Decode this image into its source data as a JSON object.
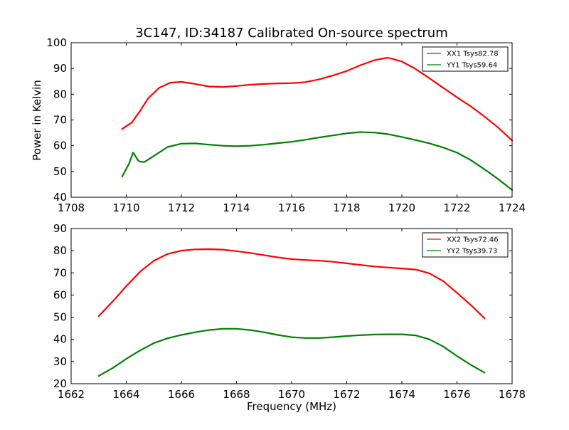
{
  "figure": {
    "title": "3C147, ID:34187 Calibrated On-source spectrum",
    "ylabel": "Power in Kelvin",
    "xlabel": "Frequency (MHz)"
  },
  "chart_data": [
    {
      "type": "line",
      "title": "3C147, ID:34187 Calibrated On-source spectrum",
      "ylabel": "Power in Kelvin",
      "xlabel": "",
      "xlim": [
        1708,
        1724
      ],
      "ylim": [
        40,
        100
      ],
      "xticks": [
        "1708",
        "1710",
        "1712",
        "1714",
        "1716",
        "1718",
        "1720",
        "1722",
        "1724"
      ],
      "yticks": [
        "40",
        "50",
        "60",
        "70",
        "80",
        "90",
        "100"
      ],
      "legend_position": "top-right",
      "series": [
        {
          "name": "XX1 Tsys82.78",
          "color": "#ff0000",
          "x": [
            1709.85,
            1710.2,
            1710.5,
            1710.8,
            1711.2,
            1711.6,
            1712.0,
            1712.5,
            1713.0,
            1713.5,
            1714.0,
            1714.5,
            1715.0,
            1715.5,
            1716.0,
            1716.5,
            1717.0,
            1717.5,
            1718.0,
            1718.5,
            1719.0,
            1719.5,
            1720.0,
            1720.5,
            1721.0,
            1721.5,
            1722.0,
            1722.5,
            1723.0,
            1723.5,
            1724.0
          ],
          "y": [
            66.5,
            69.0,
            73.5,
            78.5,
            82.5,
            84.5,
            84.8,
            84.0,
            83.0,
            82.8,
            83.2,
            83.7,
            84.0,
            84.2,
            84.3,
            84.7,
            85.8,
            87.3,
            89.0,
            91.3,
            93.2,
            94.2,
            92.7,
            89.8,
            86.2,
            82.5,
            78.8,
            75.3,
            71.3,
            67.0,
            62.0
          ]
        },
        {
          "name": "YY1 Tsys59.64",
          "color": "#008000",
          "x": [
            1709.85,
            1710.1,
            1710.25,
            1710.45,
            1710.65,
            1711.0,
            1711.5,
            1712.0,
            1712.5,
            1713.0,
            1713.5,
            1714.0,
            1714.5,
            1715.0,
            1715.5,
            1716.0,
            1716.5,
            1717.0,
            1717.5,
            1718.0,
            1718.5,
            1719.0,
            1719.5,
            1720.0,
            1720.5,
            1721.0,
            1721.5,
            1722.0,
            1722.5,
            1723.0,
            1723.5,
            1724.0
          ],
          "y": [
            48.0,
            53.0,
            57.3,
            54.0,
            53.6,
            56.0,
            59.5,
            60.8,
            60.9,
            60.4,
            60.0,
            59.8,
            60.0,
            60.4,
            61.0,
            61.5,
            62.3,
            63.2,
            64.0,
            64.8,
            65.3,
            65.1,
            64.5,
            63.4,
            62.2,
            60.9,
            59.3,
            57.3,
            54.4,
            50.8,
            47.0,
            42.8
          ]
        }
      ]
    },
    {
      "type": "line",
      "title": "",
      "ylabel": "",
      "xlabel": "Frequency (MHz)",
      "xlim": [
        1662,
        1678
      ],
      "ylim": [
        20,
        90
      ],
      "xticks": [
        "1662",
        "1664",
        "1666",
        "1668",
        "1670",
        "1672",
        "1674",
        "1676",
        "1678"
      ],
      "yticks": [
        "20",
        "30",
        "40",
        "50",
        "60",
        "70",
        "80",
        "90"
      ],
      "legend_position": "top-right",
      "series": [
        {
          "name": "XX2 Tsys72.46",
          "color": "#ff0000",
          "x": [
            1663.0,
            1663.5,
            1664.0,
            1664.5,
            1665.0,
            1665.5,
            1666.0,
            1666.5,
            1667.0,
            1667.5,
            1668.0,
            1668.5,
            1669.0,
            1669.5,
            1670.0,
            1670.5,
            1671.0,
            1671.5,
            1672.0,
            1672.5,
            1673.0,
            1673.5,
            1674.0,
            1674.5,
            1675.0,
            1675.5,
            1676.0,
            1676.5,
            1677.0
          ],
          "y": [
            50.5,
            57.0,
            64.0,
            70.5,
            75.5,
            78.5,
            80.0,
            80.6,
            80.7,
            80.5,
            79.8,
            79.0,
            78.0,
            77.0,
            76.2,
            75.8,
            75.5,
            75.0,
            74.3,
            73.6,
            72.9,
            72.4,
            72.0,
            71.5,
            69.8,
            66.3,
            61.0,
            55.5,
            49.5
          ]
        },
        {
          "name": "YY2 Tsys39.73",
          "color": "#008000",
          "x": [
            1663.0,
            1663.5,
            1664.0,
            1664.5,
            1665.0,
            1665.5,
            1666.0,
            1666.5,
            1667.0,
            1667.5,
            1668.0,
            1668.5,
            1669.0,
            1669.5,
            1670.0,
            1670.5,
            1671.0,
            1671.5,
            1672.0,
            1672.5,
            1673.0,
            1673.5,
            1674.0,
            1674.5,
            1675.0,
            1675.5,
            1676.0,
            1676.5,
            1677.0
          ],
          "y": [
            23.5,
            27.0,
            31.2,
            35.0,
            38.3,
            40.5,
            42.0,
            43.2,
            44.2,
            44.8,
            44.8,
            44.2,
            43.2,
            42.0,
            41.0,
            40.6,
            40.6,
            41.0,
            41.5,
            41.9,
            42.2,
            42.3,
            42.3,
            41.8,
            40.0,
            36.8,
            32.5,
            28.5,
            25.0
          ]
        }
      ]
    }
  ]
}
